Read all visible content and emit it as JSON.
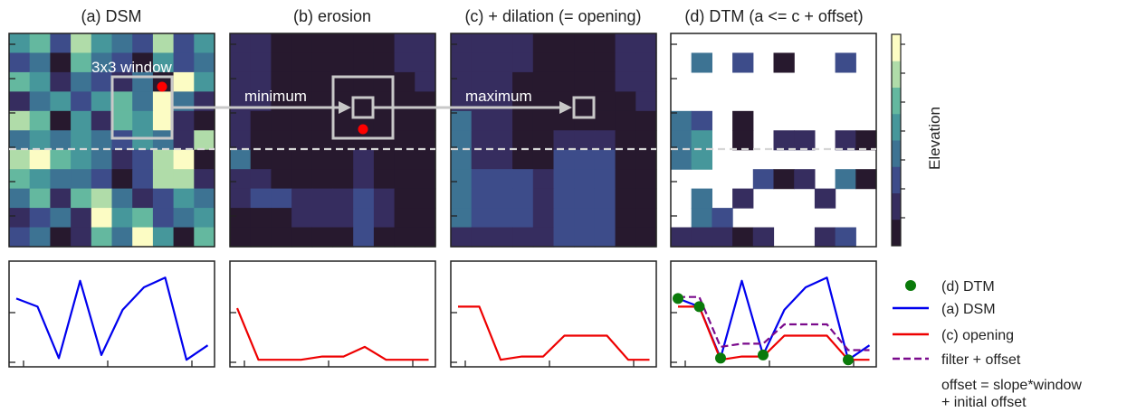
{
  "panels": {
    "a": {
      "title": "(a) DSM"
    },
    "b": {
      "title": "(b) erosion"
    },
    "c": {
      "title": "(c) + dilation (= opening)"
    },
    "d": {
      "title": "(d) DTM (a <= c + offset)"
    }
  },
  "annotations": {
    "window": "3x3 window",
    "minimum": "minimum",
    "maximum": "maximum"
  },
  "colorbar": {
    "label": "Elevation"
  },
  "legend": {
    "items": [
      {
        "label": "(d) DTM"
      },
      {
        "label": "(a) DSM"
      },
      {
        "label": "(c) opening"
      },
      {
        "label": "filter + offset"
      }
    ],
    "note_line1": "offset = slope*window",
    "note_line2": "+ initial offset"
  },
  "colors": {
    "dsm_line": "#0000ee",
    "opening_line": "#ee0000",
    "filter_line": "#7a0a8c",
    "dtm_marker": "#0a7a0a",
    "window_box": "#c8c8c8",
    "red_dot": "#ff0000"
  },
  "colormap": [
    "#27192e",
    "#362d5f",
    "#3d4c8a",
    "#3d7393",
    "#46979b",
    "#64b89f",
    "#b0dca9",
    "#fcfcc4"
  ],
  "chart_data": [
    {
      "type": "heatmap",
      "title": "(a) DSM",
      "levels": [
        [
          4,
          5,
          2,
          6,
          4,
          3,
          2,
          6,
          2,
          4
        ],
        [
          2,
          3,
          0,
          5,
          3,
          2,
          0,
          4,
          2,
          3
        ],
        [
          5,
          4,
          1,
          3,
          2,
          1,
          3,
          0,
          7,
          4
        ],
        [
          1,
          3,
          4,
          2,
          4,
          5,
          3,
          7,
          3,
          1
        ],
        [
          6,
          5,
          0,
          4,
          1,
          5,
          4,
          7,
          1,
          0
        ],
        [
          3,
          4,
          3,
          4,
          3,
          2,
          4,
          3,
          1,
          6
        ],
        [
          6,
          7,
          5,
          4,
          3,
          1,
          2,
          6,
          7,
          0
        ],
        [
          5,
          4,
          3,
          3,
          2,
          0,
          2,
          6,
          6,
          1
        ],
        [
          3,
          5,
          1,
          5,
          6,
          3,
          1,
          2,
          4,
          3
        ],
        [
          1,
          2,
          3,
          1,
          7,
          4,
          5,
          2,
          3,
          4
        ],
        [
          2,
          3,
          0,
          1,
          5,
          3,
          7,
          4,
          0,
          5
        ]
      ]
    },
    {
      "type": "heatmap",
      "title": "(b) erosion",
      "levels": [
        [
          1,
          1,
          0,
          0,
          0,
          0,
          0,
          0,
          1,
          1
        ],
        [
          1,
          1,
          0,
          0,
          0,
          0,
          0,
          0,
          1,
          1
        ],
        [
          1,
          1,
          0,
          0,
          0,
          0,
          0,
          0,
          0,
          1
        ],
        [
          1,
          1,
          0,
          0,
          0,
          0,
          0,
          0,
          0,
          0
        ],
        [
          1,
          0,
          0,
          0,
          0,
          0,
          0,
          0,
          0,
          0
        ],
        [
          1,
          0,
          0,
          0,
          0,
          0,
          0,
          0,
          0,
          0
        ],
        [
          3,
          0,
          0,
          0,
          0,
          0,
          1,
          0,
          0,
          0
        ],
        [
          1,
          1,
          0,
          0,
          0,
          0,
          1,
          0,
          0,
          0
        ],
        [
          1,
          2,
          2,
          1,
          1,
          1,
          2,
          1,
          0,
          0
        ],
        [
          0,
          0,
          0,
          1,
          1,
          1,
          2,
          1,
          0,
          0
        ],
        [
          0,
          0,
          0,
          0,
          0,
          0,
          2,
          0,
          0,
          0
        ]
      ]
    },
    {
      "type": "heatmap",
      "title": "(c) + dilation (= opening)",
      "levels": [
        [
          1,
          1,
          1,
          1,
          0,
          0,
          0,
          0,
          1,
          1
        ],
        [
          1,
          1,
          1,
          1,
          0,
          0,
          0,
          0,
          1,
          1
        ],
        [
          1,
          1,
          1,
          0,
          0,
          0,
          0,
          0,
          1,
          1
        ],
        [
          1,
          1,
          1,
          0,
          0,
          0,
          0,
          0,
          0,
          1
        ],
        [
          3,
          1,
          1,
          0,
          0,
          0,
          0,
          0,
          0,
          0
        ],
        [
          3,
          1,
          1,
          0,
          0,
          1,
          1,
          1,
          0,
          0
        ],
        [
          3,
          1,
          1,
          0,
          0,
          2,
          2,
          2,
          0,
          0
        ],
        [
          3,
          2,
          2,
          2,
          1,
          2,
          2,
          2,
          0,
          0
        ],
        [
          3,
          2,
          2,
          2,
          1,
          2,
          2,
          2,
          0,
          0
        ],
        [
          3,
          2,
          2,
          2,
          1,
          2,
          2,
          2,
          0,
          0
        ],
        [
          1,
          1,
          1,
          1,
          1,
          2,
          2,
          2,
          0,
          0
        ]
      ]
    },
    {
      "type": "heatmap",
      "title": "(d) DTM (a <= c + offset)",
      "levels": [
        [
          null,
          null,
          null,
          null,
          null,
          null,
          null,
          null,
          null,
          null
        ],
        [
          null,
          3,
          null,
          2,
          null,
          0,
          null,
          null,
          2,
          null
        ],
        [
          null,
          null,
          null,
          null,
          null,
          null,
          null,
          null,
          null,
          null
        ],
        [
          null,
          null,
          null,
          null,
          null,
          null,
          null,
          null,
          null,
          null
        ],
        [
          3,
          2,
          null,
          0,
          null,
          null,
          null,
          null,
          null,
          null
        ],
        [
          3,
          4,
          null,
          0,
          null,
          1,
          1,
          null,
          1,
          0
        ],
        [
          3,
          4,
          null,
          null,
          null,
          null,
          null,
          null,
          null,
          null
        ],
        [
          null,
          null,
          null,
          null,
          2,
          0,
          1,
          null,
          3,
          0
        ],
        [
          null,
          3,
          null,
          1,
          null,
          null,
          null,
          1,
          null,
          null
        ],
        [
          null,
          3,
          2,
          null,
          null,
          null,
          null,
          null,
          null,
          null
        ],
        [
          1,
          1,
          1,
          0,
          1,
          null,
          null,
          1,
          2,
          null
        ]
      ]
    },
    {
      "type": "line",
      "title": "",
      "x": [
        0,
        1,
        2,
        3,
        4,
        5,
        6,
        7,
        8,
        9
      ],
      "series": [
        {
          "name": "(a) DSM",
          "values": [
            3.9,
            3.4,
            0.2,
            5.0,
            0.4,
            3.2,
            4.6,
            5.2,
            0.1,
            1.0
          ]
        }
      ],
      "ylim": [
        0,
        6
      ]
    },
    {
      "type": "line",
      "title": "",
      "x": [
        0,
        1,
        2,
        3,
        4,
        5,
        6,
        7,
        8,
        9
      ],
      "series": [
        {
          "name": "(c) opening",
          "values": [
            3.3,
            0.1,
            0.1,
            0.1,
            0.3,
            0.3,
            0.9,
            0.1,
            0.1,
            0.1
          ]
        }
      ],
      "ylim": [
        0,
        6
      ]
    },
    {
      "type": "line",
      "title": "",
      "x": [
        0,
        1,
        2,
        3,
        4,
        5,
        6,
        7,
        8,
        9
      ],
      "series": [
        {
          "name": "(c) opening",
          "values": [
            3.4,
            3.4,
            0.1,
            0.3,
            0.3,
            1.6,
            1.6,
            1.6,
            0.1,
            0.1
          ]
        }
      ],
      "ylim": [
        0,
        6
      ]
    },
    {
      "type": "line",
      "title": "",
      "x": [
        0,
        1,
        2,
        3,
        4,
        5,
        6,
        7,
        8,
        9
      ],
      "series": [
        {
          "name": "(a) DSM",
          "values": [
            3.9,
            3.4,
            0.2,
            5.0,
            0.4,
            3.2,
            4.6,
            5.2,
            0.1,
            1.0
          ]
        },
        {
          "name": "(c) opening",
          "values": [
            3.4,
            3.4,
            0.1,
            0.3,
            0.3,
            1.6,
            1.6,
            1.6,
            0.1,
            0.1
          ]
        },
        {
          "name": "filter + offset",
          "values": [
            4.0,
            4.0,
            0.9,
            1.1,
            1.1,
            2.3,
            2.3,
            2.3,
            0.7,
            0.7
          ]
        },
        {
          "name": "(d) DTM",
          "points": [
            [
              0,
              3.9
            ],
            [
              1,
              3.4
            ],
            [
              2,
              0.2
            ],
            [
              4,
              0.4
            ],
            [
              8,
              0.1
            ]
          ]
        }
      ],
      "ylim": [
        0,
        6
      ]
    }
  ]
}
